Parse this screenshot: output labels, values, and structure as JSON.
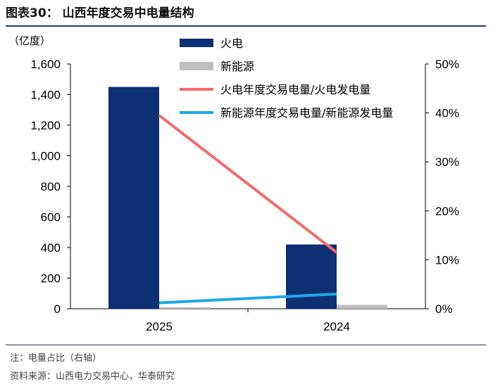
{
  "header": {
    "title": "图表30：   山西年度交易中电量结构"
  },
  "footer": {
    "note": "注：电量占比（右轴）",
    "source": "资料来源：山西电力交易中心，华泰研究"
  },
  "chart_data": {
    "type": "bar",
    "categories": [
      "2025",
      "2024"
    ],
    "series": [
      {
        "name": "火电",
        "type": "bar",
        "axis": "left",
        "color": "#0d2f73",
        "values": [
          1450,
          420
        ]
      },
      {
        "name": "新能源",
        "type": "bar",
        "axis": "left",
        "color": "#bfbfbf",
        "values": [
          10,
          25
        ]
      },
      {
        "name": "火电年度交易电量/火电发电量",
        "type": "line",
        "axis": "right",
        "color": "#f26b6b",
        "values": [
          39.5,
          11.5
        ]
      },
      {
        "name": "新能源年度交易电量/新能源发电量",
        "type": "line",
        "axis": "right",
        "color": "#1aa9e6",
        "values": [
          1.2,
          3.0
        ]
      }
    ],
    "ylabel_left": "（亿度）",
    "ylim_left": [
      0,
      1600
    ],
    "yticks_left": [
      "0",
      "200",
      "400",
      "600",
      "800",
      "1,000",
      "1,200",
      "1,400",
      "1,600"
    ],
    "ylim_right": [
      0,
      50
    ],
    "yticks_right": [
      "0%",
      "10%",
      "20%",
      "30%",
      "40%",
      "50%"
    ],
    "grid": false,
    "legend_position": "top-right"
  }
}
